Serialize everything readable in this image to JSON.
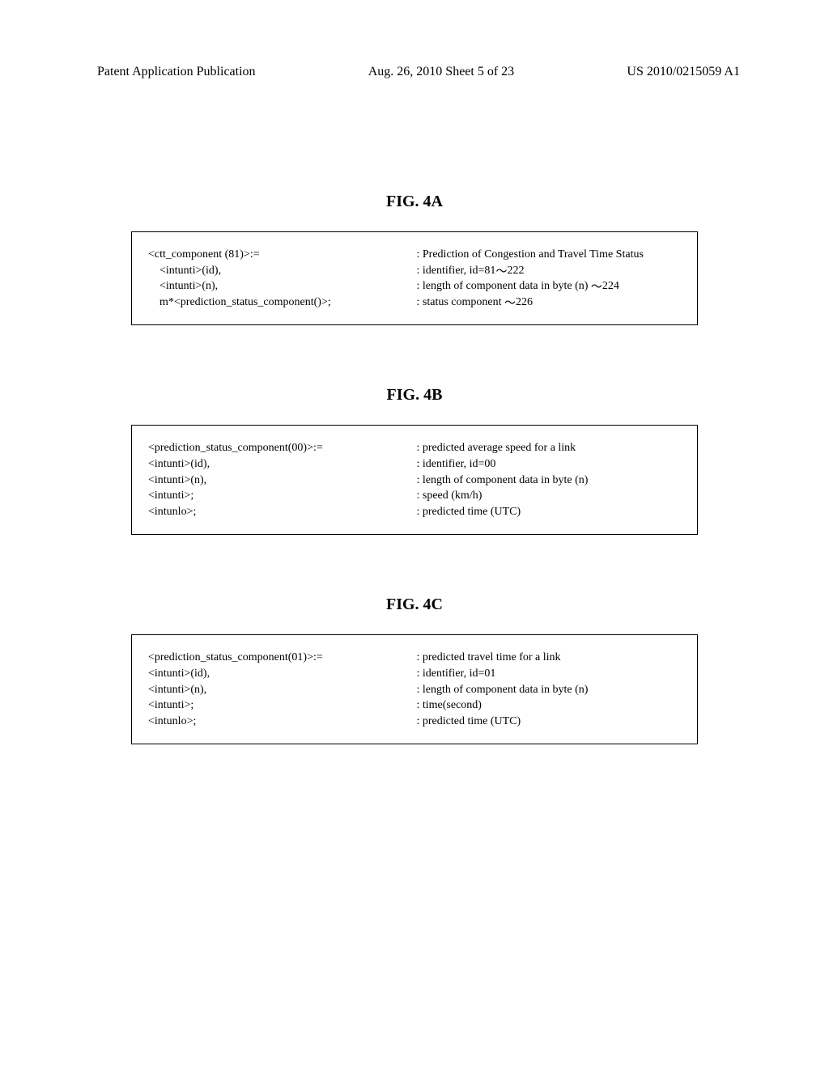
{
  "header": {
    "left": "Patent Application Publication",
    "center": "Aug. 26, 2010  Sheet 5 of 23",
    "right": "US 2010/0215059 A1"
  },
  "fig4a": {
    "label": "FIG.  4A",
    "left": {
      "line1": "<ctt_component (81)>:=",
      "line2": "<intunti>(id),",
      "line3": "<intunti>(n),",
      "line4": "m*<prediction_status_component()>;"
    },
    "right": {
      "line1": ": Prediction of Congestion and Travel Time Status",
      "line2a": ": identifier, id=81",
      "line2b": "222",
      "line3a": ": length of component data in byte (n)",
      "line3b": "224",
      "line4a": ": status component",
      "line4b": "226"
    }
  },
  "fig4b": {
    "label": "FIG.  4B",
    "left": {
      "line1": "<prediction_status_component(00)>:=",
      "line2": "<intunti>(id),",
      "line3": "<intunti>(n),",
      "line4": "<intunti>;",
      "line5": "<intunlo>;"
    },
    "right": {
      "line1": ": predicted average speed for a link",
      "line2": ": identifier, id=00",
      "line3": ": length of component data in byte (n)",
      "line4": ": speed (km/h)",
      "line5": ": predicted time (UTC)"
    }
  },
  "fig4c": {
    "label": "FIG.  4C",
    "left": {
      "line1": "<prediction_status_component(01)>:=",
      "line2": "<intunti>(id),",
      "line3": "<intunti>(n),",
      "line4": "<intunti>;",
      "line5": "<intunlo>;"
    },
    "right": {
      "line1": ": predicted travel time for a link",
      "line2": ": identifier, id=01",
      "line3": ": length of component data in byte (n)",
      "line4": ": time(second)",
      "line5": ": predicted time (UTC)"
    }
  }
}
